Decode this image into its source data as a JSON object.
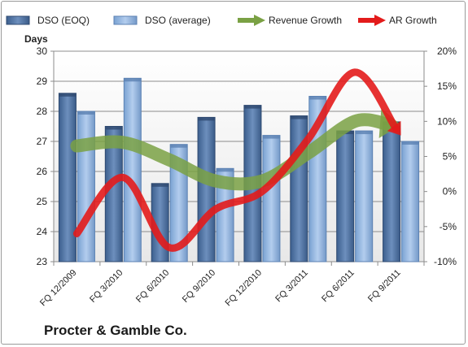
{
  "chart_data": {
    "type": "bar",
    "categories": [
      "FQ 12/2009",
      "FQ 3/2010",
      "FQ 6/2010",
      "FQ 9/2010",
      "FQ 12/2010",
      "FQ 3/2011",
      "FQ 6/2011",
      "FQ 9/2011"
    ],
    "series": [
      {
        "name": "DSO (EOQ)",
        "axis": "left",
        "kind": "bar",
        "color": "#4a6d9c",
        "values": [
          28.6,
          27.5,
          25.6,
          27.8,
          28.2,
          27.85,
          27.35,
          27.65
        ]
      },
      {
        "name": "DSO (average)",
        "axis": "left",
        "kind": "bar",
        "color": "#8fb3de",
        "values": [
          28.0,
          29.1,
          26.9,
          26.1,
          27.2,
          28.5,
          27.35,
          27.0
        ]
      },
      {
        "name": "Revenue Growth",
        "axis": "right",
        "kind": "arrow-line",
        "color": "#7aa144",
        "values": [
          6.5,
          7.0,
          4.5,
          1.5,
          1.5,
          5.5,
          10.0,
          9.5
        ]
      },
      {
        "name": "AR Growth",
        "axis": "right",
        "kind": "arrow-line",
        "color": "#e31b1b",
        "values": [
          -6.0,
          2.0,
          -8.0,
          -2.5,
          0.0,
          7.5,
          17.0,
          8.0
        ]
      }
    ],
    "ylabel": "Days",
    "ylim": [
      23,
      30
    ],
    "yticks": [
      23,
      24,
      25,
      26,
      27,
      28,
      29,
      30
    ],
    "y2lim": [
      -10,
      20
    ],
    "y2ticks": [
      "-10%",
      "-5%",
      "0%",
      "5%",
      "10%",
      "15%",
      "20%"
    ],
    "grid": true,
    "legend_position": "top"
  },
  "footer": {
    "title": "Procter & Gamble Co."
  }
}
